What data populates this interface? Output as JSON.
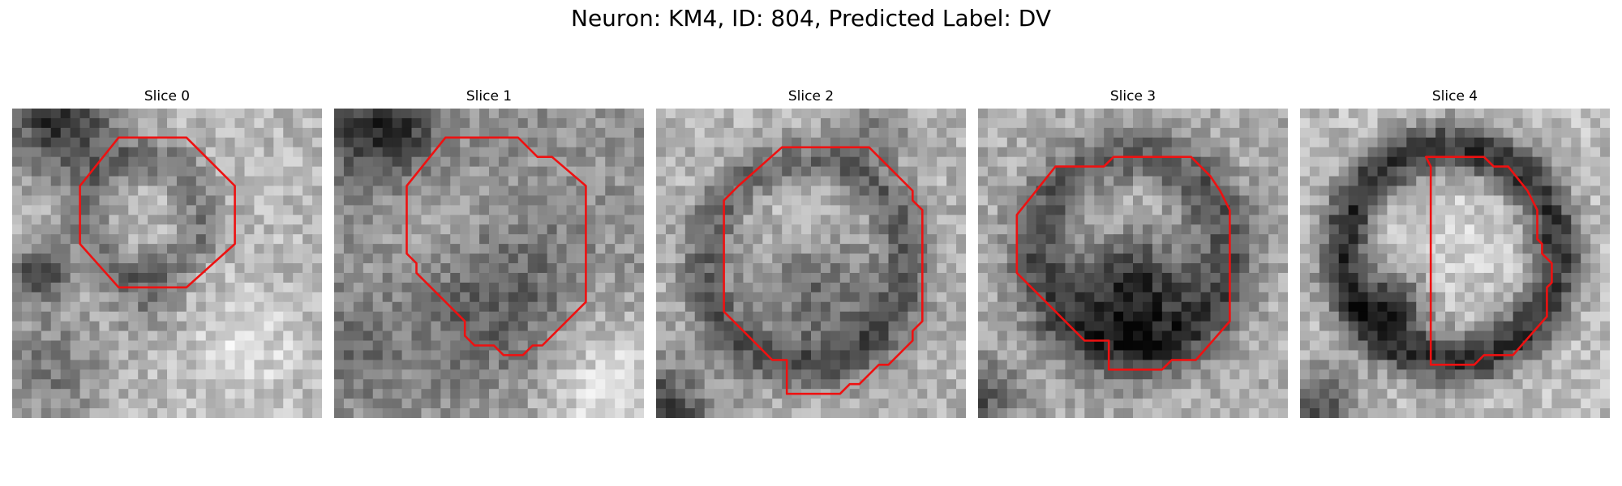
{
  "figure": {
    "title": "Neuron: KM4, ID: 804, Predicted Label: DV",
    "outline_color": "#ee1111",
    "panels": [
      {
        "title": "Slice 0",
        "tone": "mottled light background with a dark upper-left corner, a dark blob at the left edge and a small outlined cell body"
      },
      {
        "title": "Slice 1",
        "tone": "medium gray texture with a lighter band in the lower-right"
      },
      {
        "title": "Slice 2",
        "tone": "pale ring around a darker center, dark band along the bottom-left"
      },
      {
        "title": "Slice 3",
        "tone": "dark ring with a very dark lower-center core"
      },
      {
        "title": "Slice 4",
        "tone": "dark circular membrane ring around a lighter interior, outline covers the right half"
      }
    ]
  }
}
